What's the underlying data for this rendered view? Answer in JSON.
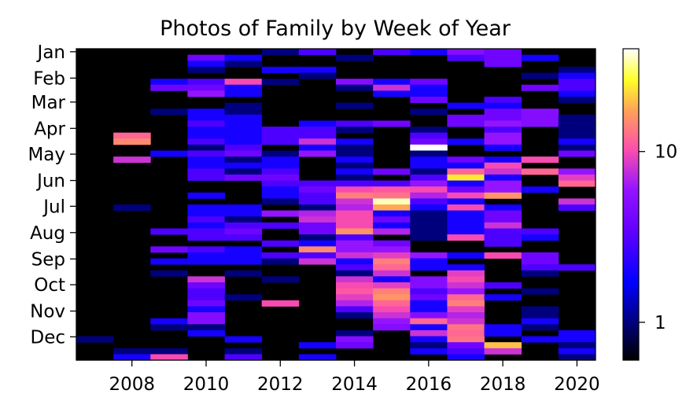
{
  "chart_data": {
    "type": "heatmap",
    "title": "Photos of Family by Week of Year",
    "xlabel": "",
    "ylabel": "",
    "x": [
      2007,
      2008,
      2009,
      2010,
      2011,
      2012,
      2013,
      2014,
      2015,
      2016,
      2017,
      2018,
      2019,
      2020
    ],
    "x_ticks": [
      "2008",
      "2010",
      "2012",
      "2014",
      "2016",
      "2018",
      "2020"
    ],
    "y_ticks": [
      "Jan",
      "Feb",
      "Mar",
      "Apr",
      "May",
      "Jun",
      "Jul",
      "Aug",
      "Sep",
      "Oct",
      "Nov",
      "Dec"
    ],
    "weeks": 52,
    "color_scale": "log",
    "colormap": "gnuplot2",
    "colorbar_range": [
      0.6,
      40
    ],
    "colorbar_ticks": [
      "1",
      "10"
    ],
    "values_note": "columns = year, rows = week 1..52; 0 = no photos",
    "values": [
      [
        0,
        0,
        0,
        0,
        0,
        0,
        0,
        0,
        0,
        0,
        0,
        0,
        0,
        0,
        0,
        0,
        0,
        0,
        0,
        0,
        0,
        0,
        0,
        0,
        0,
        0,
        0,
        0,
        0,
        0,
        0,
        0,
        0,
        0,
        0,
        0,
        0,
        0,
        0,
        0,
        0,
        0,
        0,
        0,
        0,
        0,
        0,
        0,
        1,
        0,
        0,
        0
      ],
      [
        0,
        0,
        0,
        0,
        0,
        0,
        0,
        0,
        0,
        0,
        0,
        0,
        0,
        0,
        12,
        15,
        0,
        0,
        8,
        0,
        0,
        0,
        0,
        0,
        0,
        0,
        1,
        0,
        0,
        0,
        0,
        0,
        0,
        0,
        0,
        0,
        0,
        0,
        0,
        0,
        0,
        0,
        0,
        0,
        0,
        0,
        0,
        0,
        0,
        0,
        1,
        2
      ],
      [
        0,
        0,
        0,
        0,
        0,
        2,
        4,
        0,
        0,
        0,
        1,
        0,
        0,
        0,
        0,
        0,
        0,
        2,
        0,
        0,
        0,
        0,
        0,
        0,
        0,
        0,
        0,
        0,
        0,
        0,
        3,
        0,
        0,
        4,
        0,
        2,
        0,
        1,
        0,
        0,
        0,
        0,
        0,
        0,
        0,
        2,
        1,
        0,
        0,
        0,
        1,
        10
      ],
      [
        0,
        4,
        2,
        1,
        0,
        3,
        4,
        6,
        0,
        0,
        2,
        2,
        3,
        2,
        2,
        3,
        1,
        3,
        2,
        2,
        3,
        3,
        0,
        0,
        2,
        0,
        2,
        2,
        3,
        2,
        3,
        3,
        0,
        3,
        2,
        2,
        0,
        0,
        8,
        4,
        3,
        3,
        4,
        2,
        5,
        5,
        1,
        2,
        0,
        0,
        0,
        0
      ],
      [
        0,
        2,
        1,
        0,
        0,
        10,
        2,
        2,
        0,
        1,
        1,
        2,
        2,
        2,
        2,
        2,
        3,
        4,
        1,
        2,
        1,
        4,
        0,
        0,
        0,
        0,
        2,
        2,
        1,
        3,
        4,
        3,
        0,
        2,
        2,
        2,
        0,
        1,
        0,
        0,
        0,
        1,
        0,
        0,
        0,
        0,
        0,
        0,
        2,
        0,
        1,
        3
      ],
      [
        1,
        0,
        0,
        2,
        0,
        1,
        0,
        0,
        0,
        0,
        0,
        0,
        0,
        3,
        3,
        3,
        0,
        1,
        2,
        2,
        3,
        4,
        3,
        2,
        2,
        1,
        0,
        6,
        0,
        3,
        0,
        0,
        3,
        0,
        3,
        1,
        0,
        0,
        1,
        0,
        0,
        0,
        10,
        0,
        0,
        0,
        0,
        0,
        0,
        0,
        0,
        0
      ],
      [
        3,
        0,
        0,
        2,
        1,
        0,
        0,
        0,
        0,
        0,
        0,
        0,
        2,
        3,
        3,
        8,
        2,
        6,
        0,
        0,
        0,
        0,
        3,
        4,
        3,
        3,
        1,
        7,
        8,
        4,
        4,
        1,
        2,
        15,
        3,
        8,
        0,
        0,
        0,
        0,
        0,
        0,
        0,
        0,
        0,
        0,
        0,
        0,
        0,
        2,
        0,
        2
      ],
      [
        0,
        1,
        0,
        0,
        0,
        5,
        1,
        0,
        0,
        1,
        0,
        0,
        3,
        1,
        0,
        2,
        1,
        1,
        2,
        1,
        2,
        1,
        3,
        10,
        14,
        8,
        7,
        10,
        10,
        10,
        16,
        3,
        6,
        6,
        8,
        2,
        3,
        1,
        8,
        10,
        11,
        9,
        7,
        3,
        1,
        0,
        0,
        1,
        5,
        4,
        0,
        0
      ],
      [
        3,
        0,
        0,
        0,
        0,
        2,
        8,
        2,
        0,
        0,
        0,
        0,
        4,
        0,
        0,
        0,
        0,
        0,
        0,
        0,
        4,
        0,
        3,
        11,
        13,
        35,
        18,
        2,
        4,
        2,
        7,
        0,
        4,
        6,
        9,
        14,
        12,
        8,
        2,
        9,
        14,
        16,
        12,
        10,
        8,
        6,
        5,
        0,
        0,
        0,
        0,
        0
      ],
      [
        2,
        0,
        0,
        0,
        0,
        4,
        2,
        2,
        4,
        0,
        1,
        0,
        0,
        1,
        3,
        4,
        40,
        1,
        2,
        2,
        1,
        3,
        6,
        10,
        7,
        3,
        2,
        1,
        1,
        1,
        1,
        1,
        0,
        0,
        6,
        2,
        2,
        0,
        5,
        5,
        3,
        4,
        2,
        2,
        5,
        12,
        2,
        8,
        2,
        1,
        2,
        0
      ],
      [
        5,
        3,
        0,
        0,
        0,
        0,
        0,
        0,
        0,
        2,
        0,
        4,
        4,
        0,
        0,
        2,
        0,
        0,
        4,
        2,
        12,
        24,
        2,
        4,
        10,
        2,
        10,
        2,
        2,
        2,
        2,
        10,
        0,
        0,
        2,
        0,
        2,
        9,
        10,
        8,
        6,
        12,
        14,
        9,
        7,
        8,
        13,
        12,
        13,
        4,
        3,
        2
      ],
      [
        4,
        4,
        4,
        0,
        0,
        0,
        0,
        0,
        3,
        2,
        4,
        4,
        6,
        3,
        6,
        6,
        2,
        0,
        2,
        10,
        8,
        2,
        6,
        6,
        16,
        0,
        2,
        4,
        4,
        8,
        3,
        3,
        3,
        0,
        10,
        0,
        0,
        0,
        0,
        3,
        0,
        2,
        0,
        0,
        0,
        0,
        2,
        2,
        0,
        20,
        8,
        0
      ],
      [
        0,
        2,
        0,
        0,
        1,
        0,
        4,
        0,
        0,
        0,
        5,
        5,
        5,
        0,
        0,
        0,
        0,
        0,
        10,
        0,
        12,
        0,
        0,
        2,
        0,
        0,
        0,
        0,
        0,
        0,
        3,
        2,
        0,
        0,
        4,
        4,
        3,
        1,
        0,
        0,
        1,
        0,
        0,
        1,
        1,
        2,
        1,
        0,
        2,
        0,
        0,
        0
      ],
      [
        0,
        0,
        0,
        1,
        2,
        3,
        3,
        2,
        1,
        0,
        0,
        1,
        1,
        1,
        1,
        2,
        1,
        4,
        0,
        0,
        6,
        9,
        12,
        0,
        0,
        8,
        3,
        0,
        0,
        0,
        0,
        0,
        0,
        0,
        0,
        0,
        3,
        0,
        0,
        0,
        0,
        0,
        0,
        0,
        0,
        0,
        0,
        2,
        2,
        1,
        2,
        1
      ]
    ]
  }
}
